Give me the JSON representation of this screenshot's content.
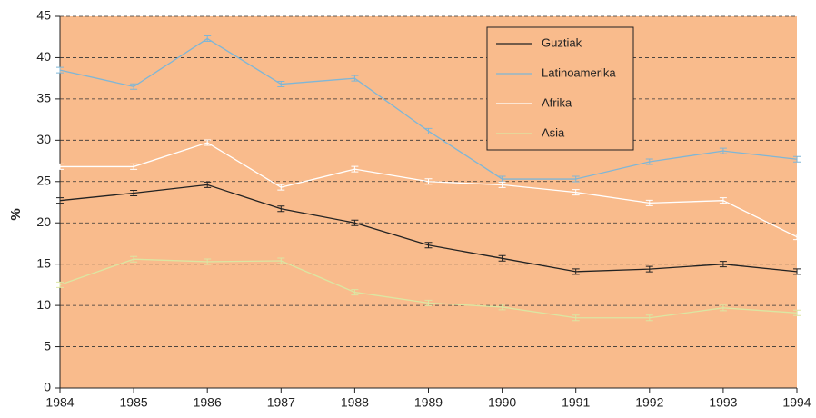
{
  "chart_data": {
    "type": "line",
    "y_label": "%",
    "x": [
      1984,
      1985,
      1986,
      1987,
      1988,
      1989,
      1990,
      1991,
      1992,
      1993,
      1994
    ],
    "xlim": [
      1984,
      1994
    ],
    "xticks": [
      1984,
      1985,
      1986,
      1987,
      1988,
      1989,
      1990,
      1991,
      1992,
      1993,
      1994
    ],
    "ylim": [
      0,
      45
    ],
    "yticks": [
      0,
      5,
      10,
      15,
      20,
      25,
      30,
      35,
      40,
      45
    ],
    "grid": true,
    "legend": "top-right",
    "background": "#f9bb8c",
    "series": [
      {
        "name": "Guztiak",
        "color": "#222222",
        "values": [
          22.7,
          23.6,
          24.6,
          21.7,
          20.0,
          17.3,
          15.7,
          14.1,
          14.4,
          15.0,
          14.1
        ]
      },
      {
        "name": "Latinoamerika",
        "color": "#7fb6d6",
        "values": [
          38.5,
          36.5,
          42.3,
          36.8,
          37.5,
          31.1,
          25.3,
          25.3,
          27.4,
          28.7,
          27.7
        ]
      },
      {
        "name": "Afrika",
        "color": "#ffffff",
        "values": [
          26.8,
          26.8,
          29.7,
          24.3,
          26.5,
          25.0,
          24.6,
          23.7,
          22.4,
          22.7,
          18.3
        ]
      },
      {
        "name": "Asia",
        "color": "#dbe6a2",
        "values": [
          12.5,
          15.6,
          15.3,
          15.4,
          11.6,
          10.3,
          9.8,
          8.5,
          8.5,
          9.7,
          9.1
        ]
      }
    ]
  }
}
